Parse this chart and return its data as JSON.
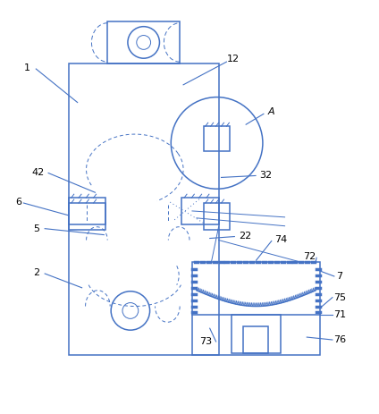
{
  "bg_color": "#ffffff",
  "lc": "#4472c4",
  "lw": 1.1,
  "lw_thin": 0.7,
  "fig_width": 4.24,
  "fig_height": 4.64
}
